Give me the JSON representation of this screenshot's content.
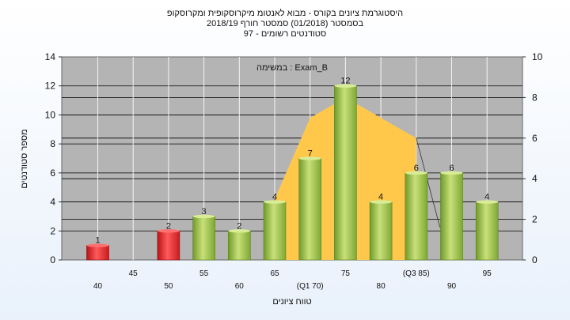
{
  "title_lines": [
    "היסטוגרמת ציונים בקורס - מבוא לאנטומ מיקרוסקופית ומקרוסקופ",
    "בסמסטר  (01/2018)  סמסטר חורף  2018/19",
    "97 - סטודנטים רשומים"
  ],
  "chart_data": {
    "type": "bar",
    "categories": [
      "40",
      "45",
      "50",
      "55",
      "60",
      "65",
      "(Q1 70)",
      "75",
      "80",
      "(Q3 85)",
      "90",
      "95"
    ],
    "values": [
      1,
      0,
      2,
      3,
      2,
      4,
      7,
      12,
      4,
      6,
      6,
      4
    ],
    "bar_colors": [
      "red",
      null,
      "red",
      "green",
      "green",
      "green",
      "green",
      "green",
      "green",
      "green",
      "green",
      "green"
    ],
    "ylabel": "מספר סטודנטים",
    "xlabel": "טווח ציונים",
    "ylim": [
      0,
      14
    ],
    "yticks": [
      0,
      2,
      4,
      6,
      8,
      10,
      12,
      14
    ],
    "y2lim": [
      0,
      10
    ],
    "y2ticks": [
      0,
      2,
      4,
      6,
      8,
      10
    ],
    "annotation": "במשימה : Exam_B",
    "band": {
      "description": "interquartile area",
      "from_category": "65",
      "to_category": "(Q3 85)",
      "right_axis_values": [
        3,
        7,
        8,
        7,
        6
      ]
    },
    "grid": true
  },
  "colors": {
    "plot_bg": "#b4b4b4",
    "band": "#ffc84a",
    "bar_red": "#e0282c",
    "bar_green": "#9bc34a",
    "grid": "#000000"
  }
}
